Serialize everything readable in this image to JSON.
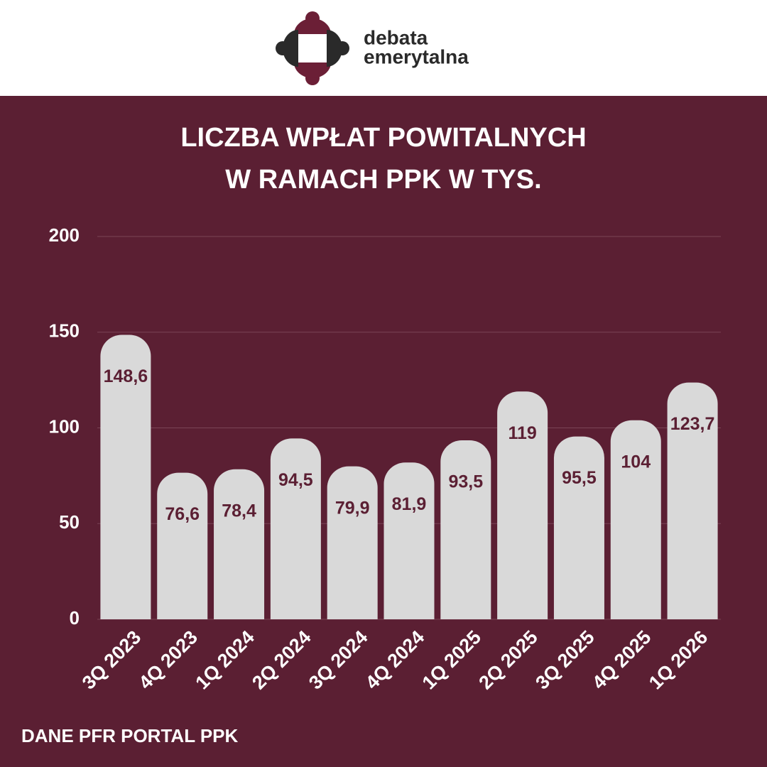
{
  "header": {
    "logo": [
      "debata",
      "emerytalna"
    ]
  },
  "chart_data": {
    "type": "bar",
    "title": [
      "LICZBA WPŁAT POWITALNYCH",
      "W RAMACH PPK W TYS."
    ],
    "categories": [
      "3Q 2023",
      "4Q 2023",
      "1Q 2024",
      "2Q 2024",
      "3Q 2024",
      "4Q 2024",
      "1Q 2025",
      "2Q 2025",
      "3Q 2025",
      "4Q 2025",
      "1Q 2026"
    ],
    "values": [
      148.6,
      76.6,
      78.4,
      94.5,
      79.9,
      81.9,
      93.5,
      119,
      95.5,
      104,
      123.7
    ],
    "value_labels": [
      "148,6",
      "76,6",
      "78,4",
      "94,5",
      "79,9",
      "81,9",
      "93,5",
      "119",
      "95,5",
      "104",
      "123,7"
    ],
    "color": "#d9d9d9",
    "ylim": [
      0,
      200
    ],
    "yticks": [
      0,
      50,
      100,
      150,
      200
    ],
    "grid": true,
    "source": "DANE PFR PORTAL PPK"
  }
}
